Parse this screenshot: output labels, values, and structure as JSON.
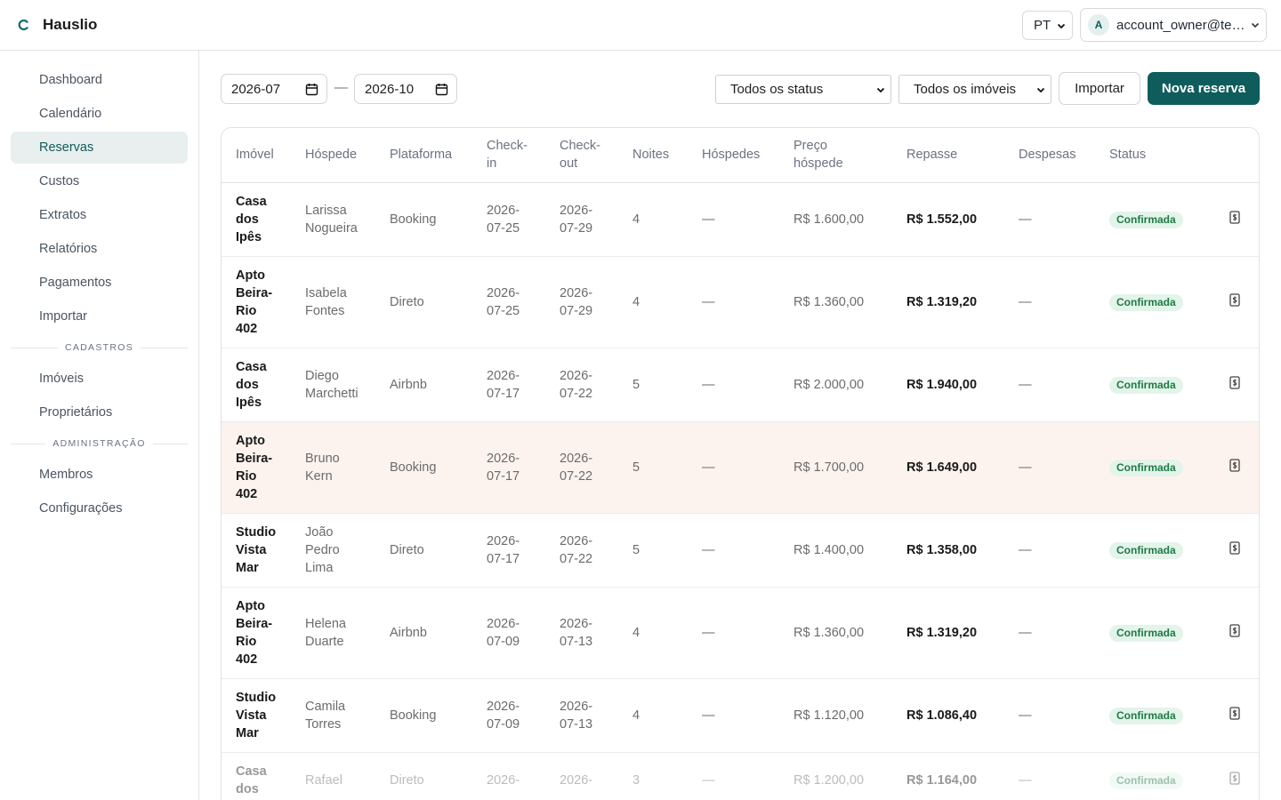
{
  "header": {
    "brand": "Hauslio",
    "language": "PT",
    "avatar": "A",
    "account": "account_owner@te…"
  },
  "sidebar": {
    "groups": [
      {
        "items": [
          {
            "label": "Dashboard"
          },
          {
            "label": "Calendário"
          },
          {
            "label": "Reservas",
            "active": true
          },
          {
            "label": "Custos"
          },
          {
            "label": "Extratos"
          },
          {
            "label": "Relatórios"
          },
          {
            "label": "Pagamentos"
          },
          {
            "label": "Importar"
          }
        ]
      },
      {
        "label": "CADASTROS",
        "items": [
          {
            "label": "Imóveis"
          },
          {
            "label": "Proprietários"
          }
        ]
      },
      {
        "label": "ADMINISTRAÇÃO",
        "items": [
          {
            "label": "Membros"
          },
          {
            "label": "Configurações"
          }
        ]
      }
    ]
  },
  "toolbar": {
    "date_from": "2026-07",
    "separator": "—",
    "date_to": "2026-10",
    "status_filter": "Todos os status",
    "property_filter": "Todos os imóveis",
    "import_button": "Importar",
    "new_button": "Nova reserva"
  },
  "table": {
    "headers": [
      "Imóvel",
      "Hóspede",
      "Plataforma",
      "Check-in",
      "Check-out",
      "Noites",
      "Hóspedes",
      "Preço hóspede",
      "Repasse",
      "Despesas",
      "Status"
    ],
    "rows": [
      [
        "Casa dos Ipês",
        "Larissa Nogueira",
        "Booking",
        "2026-07-25",
        "2026-07-29",
        "4",
        "—",
        "R$ 1.600,00",
        "R$ 1.552,00",
        "—",
        "Confirmada"
      ],
      [
        "Apto Beira-Rio 402",
        "Isabela Fontes",
        "Direto",
        "2026-07-25",
        "2026-07-29",
        "4",
        "—",
        "R$ 1.360,00",
        "R$ 1.319,20",
        "—",
        "Confirmada"
      ],
      [
        "Casa dos Ipês",
        "Diego Marchetti",
        "Airbnb",
        "2026-07-17",
        "2026-07-22",
        "5",
        "—",
        "R$ 2.000,00",
        "R$ 1.940,00",
        "—",
        "Confirmada"
      ],
      [
        "Apto Beira-Rio 402",
        "Bruno Kern",
        "Booking",
        "2026-07-17",
        "2026-07-22",
        "5",
        "—",
        "R$ 1.700,00",
        "R$ 1.649,00",
        "—",
        "Confirmada"
      ],
      [
        "Studio Vista Mar",
        "João Pedro Lima",
        "Direto",
        "2026-07-17",
        "2026-07-22",
        "5",
        "—",
        "R$ 1.400,00",
        "R$ 1.358,00",
        "—",
        "Confirmada"
      ],
      [
        "Apto Beira-Rio 402",
        "Helena Duarte",
        "Airbnb",
        "2026-07-09",
        "2026-07-13",
        "4",
        "—",
        "R$ 1.360,00",
        "R$ 1.319,20",
        "—",
        "Confirmada"
      ],
      [
        "Studio Vista Mar",
        "Camila Torres",
        "Booking",
        "2026-07-09",
        "2026-07-13",
        "4",
        "—",
        "R$ 1.120,00",
        "R$ 1.086,40",
        "—",
        "Confirmada"
      ],
      [
        "Casa dos",
        "Rafael",
        "Direto",
        "2026-",
        "2026-",
        "3",
        "—",
        "R$ 1.200,00",
        "R$ 1.164,00",
        "—",
        "Confirmada"
      ]
    ],
    "highlighted_row": 3,
    "faded_row": 7
  }
}
